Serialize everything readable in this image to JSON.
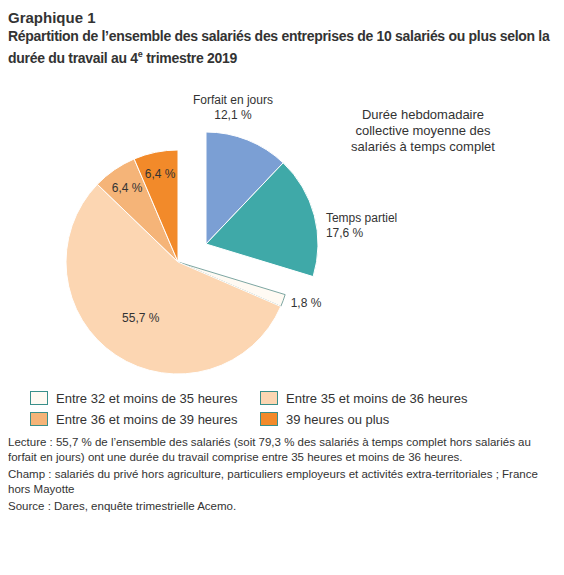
{
  "chart_data": {
    "type": "pie",
    "figure_label": "Graphique 1",
    "title": "Répartition de l’ensemble des salariés des entreprises de 10 salariés ou plus selon la durée du travail au 4e trimestre 2019",
    "annotation": "Durée hebdomadaire collective moyenne des salariés à temps complet",
    "categories": [
      "Forfait en jours",
      "Temps partiel",
      "Entre 32 et moins de 35 heures",
      "Entre 35 et moins de 36 heures",
      "Entre 36 et moins de 39 heures",
      "39 heures ou plus"
    ],
    "values": [
      12.1,
      17.6,
      1.8,
      55.7,
      6.4,
      6.4
    ],
    "value_labels": [
      "12,1 %",
      "17,6 %",
      "1,8 %",
      "55,7 %",
      "6,4 %",
      "6,4 %"
    ],
    "colors": [
      "#7b9fd4",
      "#3fa9a8",
      "#fffaf3",
      "#fcd6b2",
      "#f5b478",
      "#f28a2a"
    ],
    "data_labels": true,
    "legend": "bottom",
    "notes": [
      "Lecture : 55,7 % de l’ensemble des salariés (soit 79,3 % des salariés à temps complet hors salariés au forfait en jours) ont une durée du travail comprise entre 35 heures et moins de 36 heures.",
      "Champ : salariés du privé hors agriculture, particuliers employeurs et activités extra-territoriales ; France hors Mayotte",
      "Source : Dares, enquête trimestrielle Acemo."
    ]
  }
}
